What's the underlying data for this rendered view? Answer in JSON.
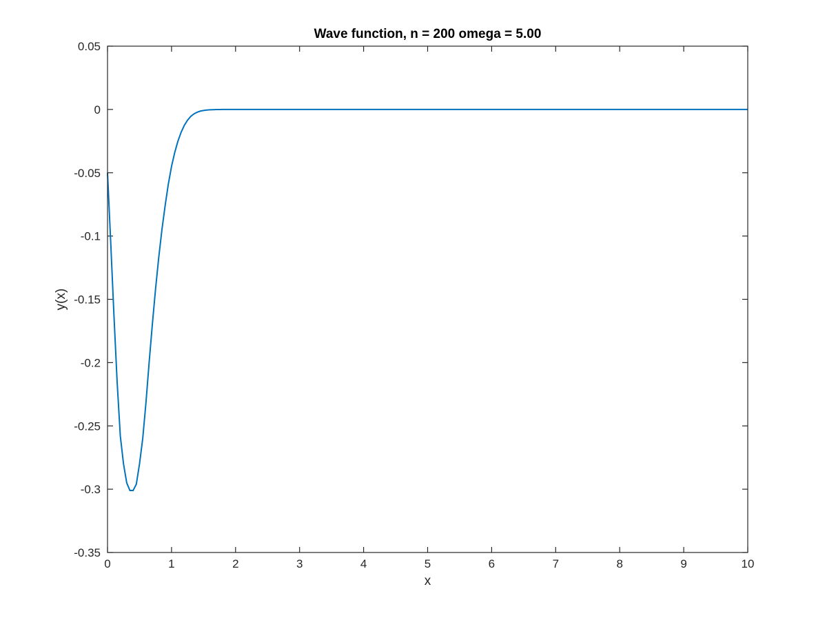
{
  "chart_data": {
    "type": "line",
    "title": "Wave function, n = 200 omega = 5.00",
    "xlabel": "x",
    "ylabel": "y(x)",
    "xlim": [
      0,
      10
    ],
    "ylim": [
      -0.35,
      0.05
    ],
    "xticks": [
      0,
      1,
      2,
      3,
      4,
      5,
      6,
      7,
      8,
      9,
      10
    ],
    "xtick_labels": [
      "0",
      "1",
      "2",
      "3",
      "4",
      "5",
      "6",
      "7",
      "8",
      "9",
      "10"
    ],
    "yticks": [
      0.05,
      0,
      -0.05,
      -0.1,
      -0.15,
      -0.2,
      -0.25,
      -0.3,
      -0.35
    ],
    "ytick_labels": [
      "0.05",
      "0",
      "-0.05",
      "-0.1",
      "-0.15",
      "-0.2",
      "-0.25",
      "-0.3",
      "-0.35"
    ],
    "grid": false,
    "series": [
      {
        "color": "#0072BD",
        "x": [
          0,
          0.05,
          0.1,
          0.15,
          0.2,
          0.25,
          0.3,
          0.35,
          0.4,
          0.45,
          0.5,
          0.55,
          0.6,
          0.65,
          0.7,
          0.75,
          0.8,
          0.85,
          0.9,
          0.95,
          1.0,
          1.05,
          1.1,
          1.15,
          1.2,
          1.25,
          1.3,
          1.35,
          1.4,
          1.45,
          1.5,
          1.55,
          1.6,
          1.65,
          1.7,
          1.75,
          1.8,
          1.9,
          2.0,
          2.2,
          2.5,
          3,
          4,
          5,
          6,
          7,
          8,
          9,
          10
        ],
        "y": [
          -0.05,
          -0.105,
          -0.162,
          -0.215,
          -0.258,
          -0.28,
          -0.295,
          -0.301,
          -0.301,
          -0.296,
          -0.28,
          -0.26,
          -0.232,
          -0.2,
          -0.17,
          -0.142,
          -0.117,
          -0.095,
          -0.076,
          -0.059,
          -0.045,
          -0.034,
          -0.025,
          -0.018,
          -0.0125,
          -0.0085,
          -0.0055,
          -0.0035,
          -0.0022,
          -0.0013,
          -0.0008,
          -0.0005,
          -0.0003,
          -0.0002,
          -0.0001,
          -5e-05,
          -3e-05,
          -1e-05,
          0,
          0,
          0,
          0,
          0,
          0,
          0,
          0,
          0,
          0,
          0
        ]
      }
    ]
  }
}
